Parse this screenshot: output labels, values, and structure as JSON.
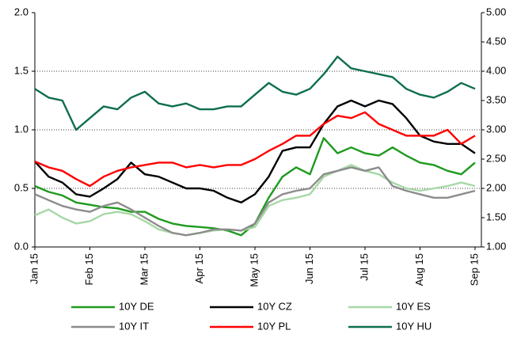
{
  "chart_data": {
    "type": "line",
    "categories": [
      "Jan 15",
      null,
      null,
      null,
      "Feb 15",
      null,
      null,
      null,
      "Mar 15",
      null,
      null,
      null,
      "Apr 15",
      null,
      null,
      null,
      "May 15",
      null,
      null,
      null,
      "Jun 15",
      null,
      null,
      null,
      "Jul 15",
      null,
      null,
      null,
      "Aug 15",
      null,
      null,
      null,
      "Sep 15"
    ],
    "ylim": [
      0,
      2
    ],
    "yticks": [
      {
        "value": 0,
        "label": "0.0"
      },
      {
        "value": 0.5,
        "label": "0.5"
      },
      {
        "value": 1,
        "label": "1.0"
      },
      {
        "value": 1.5,
        "label": "1.5"
      },
      {
        "value": 2,
        "label": "2.0"
      }
    ],
    "y2lim": [
      1,
      5
    ],
    "y2ticks": [
      {
        "value": 1,
        "label": "1.00"
      },
      {
        "value": 1.5,
        "label": "1.50"
      },
      {
        "value": 2,
        "label": "2.00"
      },
      {
        "value": 2.5,
        "label": "2.50"
      },
      {
        "value": 3,
        "label": "3.00"
      },
      {
        "value": 3.5,
        "label": "3.50"
      },
      {
        "value": 4,
        "label": "4.00"
      },
      {
        "value": 4.5,
        "label": "4.50"
      },
      {
        "value": 5,
        "label": "5.00"
      }
    ],
    "grid": true,
    "legend": "bottom",
    "series": [
      {
        "name": "10Y DE",
        "color": "#1e9a1e",
        "values": [
          0.52,
          0.47,
          0.44,
          0.38,
          0.36,
          0.34,
          0.33,
          0.3,
          0.3,
          0.24,
          0.2,
          0.18,
          0.17,
          0.16,
          0.14,
          0.1,
          0.2,
          0.42,
          0.6,
          0.68,
          0.62,
          0.93,
          0.8,
          0.85,
          0.8,
          0.78,
          0.85,
          0.78,
          0.72,
          0.7,
          0.65,
          0.62,
          0.72
        ]
      },
      {
        "name": "10Y CZ",
        "color": "#000000",
        "values": [
          0.73,
          0.6,
          0.55,
          0.45,
          0.43,
          0.5,
          0.58,
          0.72,
          0.62,
          0.6,
          0.55,
          0.5,
          0.5,
          0.48,
          0.42,
          0.38,
          0.45,
          0.6,
          0.82,
          0.85,
          0.85,
          1.05,
          1.2,
          1.25,
          1.2,
          1.25,
          1.22,
          1.1,
          0.95,
          0.9,
          0.88,
          0.88,
          0.8
        ]
      },
      {
        "name": "10Y ES",
        "color": "#a6d8a6",
        "values": [
          0.27,
          0.32,
          0.25,
          0.2,
          0.22,
          0.28,
          0.3,
          0.28,
          0.22,
          0.15,
          0.12,
          0.1,
          0.12,
          0.14,
          0.15,
          0.14,
          0.17,
          0.35,
          0.4,
          0.42,
          0.45,
          0.6,
          0.65,
          0.7,
          0.65,
          0.62,
          0.55,
          0.5,
          0.48,
          0.5,
          0.52,
          0.55,
          0.52
        ]
      },
      {
        "name": "10Y IT",
        "color": "#8c8c8c",
        "values": [
          0.45,
          0.4,
          0.35,
          0.32,
          0.3,
          0.35,
          0.38,
          0.32,
          0.25,
          0.18,
          0.12,
          0.1,
          0.12,
          0.15,
          0.15,
          0.14,
          0.2,
          0.38,
          0.45,
          0.48,
          0.5,
          0.62,
          0.65,
          0.68,
          0.65,
          0.68,
          0.52,
          0.48,
          0.45,
          0.42,
          0.42,
          0.45,
          0.48
        ]
      },
      {
        "name": "10Y PL",
        "color": "#ff0000",
        "values": [
          0.73,
          0.68,
          0.65,
          0.58,
          0.52,
          0.6,
          0.65,
          0.68,
          0.7,
          0.72,
          0.72,
          0.68,
          0.7,
          0.68,
          0.7,
          0.7,
          0.75,
          0.82,
          0.88,
          0.95,
          0.95,
          1.05,
          1.12,
          1.1,
          1.15,
          1.05,
          1.0,
          0.95,
          0.95,
          0.95,
          1.0,
          0.88,
          0.95
        ]
      },
      {
        "name": "10Y HU",
        "color": "#0e6e50",
        "axis": "y2",
        "values": [
          3.7,
          3.55,
          3.5,
          3.0,
          3.2,
          3.4,
          3.35,
          3.55,
          3.65,
          3.45,
          3.4,
          3.45,
          3.35,
          3.35,
          3.4,
          3.4,
          3.6,
          3.8,
          3.65,
          3.6,
          3.7,
          3.95,
          4.25,
          4.05,
          4.0,
          3.95,
          3.9,
          3.7,
          3.6,
          3.55,
          3.65,
          3.8,
          3.7
        ]
      }
    ]
  }
}
